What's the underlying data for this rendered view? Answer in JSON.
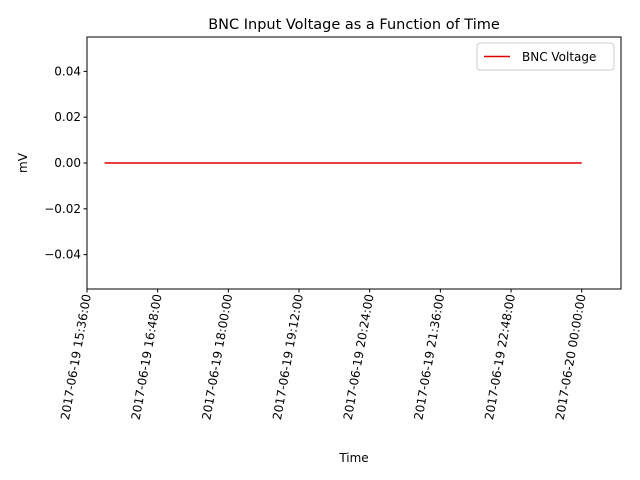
{
  "chart_data": {
    "type": "line",
    "title": "BNC Input Voltage as a Function of Time",
    "xlabel": "Time",
    "ylabel": "mV",
    "x_type": "datetime",
    "xlim": [
      "2017-06-19 15:36:00",
      "2017-06-20 00:40:00"
    ],
    "ylim": [
      -0.055,
      0.055
    ],
    "x_ticks": [
      "2017-06-19 15:36:00",
      "2017-06-19 16:48:00",
      "2017-06-19 18:00:00",
      "2017-06-19 19:12:00",
      "2017-06-19 20:24:00",
      "2017-06-19 21:36:00",
      "2017-06-19 22:48:00",
      "2017-06-20 00:00:00"
    ],
    "y_ticks": [
      0.04,
      0.02,
      0.0,
      -0.02,
      -0.04
    ],
    "y_tick_labels": [
      "0.04",
      "0.02",
      "0.00",
      "−0.02",
      "−0.04"
    ],
    "grid": false,
    "legend_position": "top-right",
    "series": [
      {
        "name": "BNC Voltage",
        "color": "#e00000",
        "x": [
          "2017-06-19 15:54:00",
          "2017-06-20 00:00:00"
        ],
        "y": [
          0.0,
          0.0
        ]
      }
    ]
  }
}
